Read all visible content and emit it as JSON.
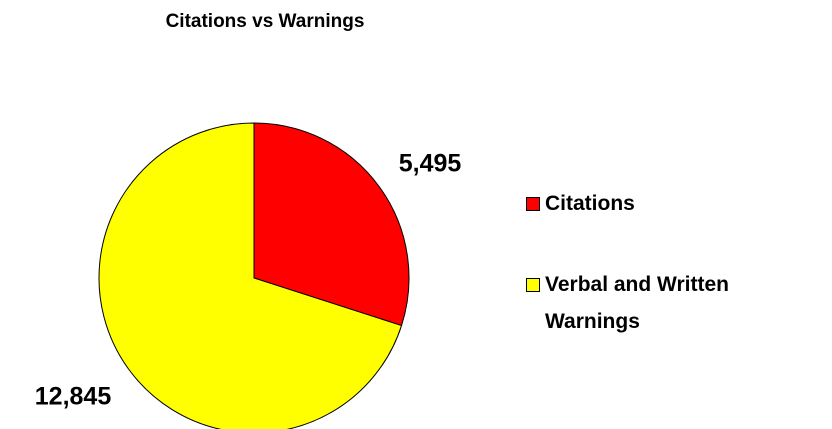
{
  "chart_data": {
    "type": "pie",
    "title": "Citations vs Warnings",
    "categories": [
      "Citations",
      "Verbal and Written Warnings"
    ],
    "values": [
      5495,
      12845
    ],
    "value_labels": [
      "5,495",
      "12,845"
    ],
    "colors": [
      "#ff0000",
      "#ffff00"
    ],
    "legend": "right"
  }
}
